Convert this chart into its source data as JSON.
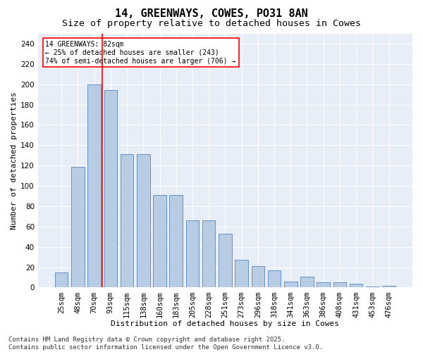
{
  "title": "14, GREENWAYS, COWES, PO31 8AN",
  "subtitle": "Size of property relative to detached houses in Cowes",
  "xlabel": "Distribution of detached houses by size in Cowes",
  "ylabel": "Number of detached properties",
  "categories": [
    "25sqm",
    "48sqm",
    "70sqm",
    "93sqm",
    "115sqm",
    "138sqm",
    "160sqm",
    "183sqm",
    "205sqm",
    "228sqm",
    "251sqm",
    "273sqm",
    "296sqm",
    "318sqm",
    "341sqm",
    "363sqm",
    "386sqm",
    "408sqm",
    "431sqm",
    "453sqm",
    "476sqm"
  ],
  "values": [
    15,
    119,
    200,
    194,
    131,
    131,
    91,
    91,
    66,
    66,
    53,
    27,
    21,
    17,
    6,
    11,
    5,
    5,
    4,
    1,
    2
  ],
  "bar_color": "#b8cce4",
  "bar_edge_color": "#5585c0",
  "vline_x": 2.5,
  "vline_color": "red",
  "annotation_text": "14 GREENWAYS: 82sqm\n← 25% of detached houses are smaller (243)\n74% of semi-detached houses are larger (706) →",
  "annotation_box_color": "white",
  "annotation_box_edge_color": "red",
  "ylim": [
    0,
    250
  ],
  "yticks": [
    0,
    20,
    40,
    60,
    80,
    100,
    120,
    140,
    160,
    180,
    200,
    220,
    240
  ],
  "bg_color": "#e8eef8",
  "footer": "Contains HM Land Registry data © Crown copyright and database right 2025.\nContains public sector information licensed under the Open Government Licence v3.0.",
  "title_fontsize": 11,
  "subtitle_fontsize": 9.5,
  "xlabel_fontsize": 8,
  "ylabel_fontsize": 8,
  "tick_fontsize": 7.5,
  "footer_fontsize": 6.5,
  "annotation_fontsize": 7
}
